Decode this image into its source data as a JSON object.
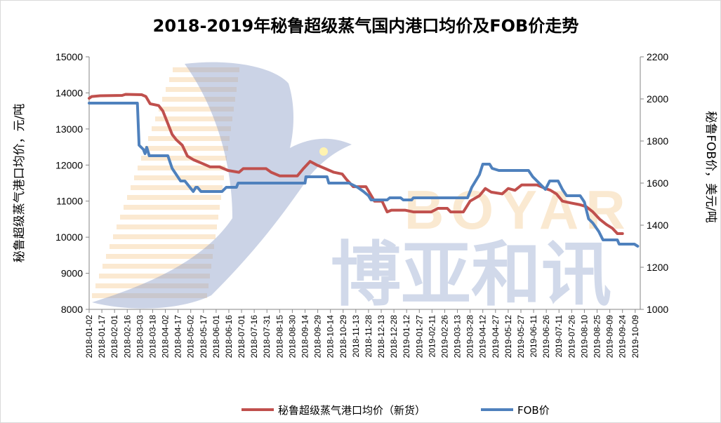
{
  "chart_data": {
    "type": "line",
    "title": "2018-2019年秘鲁超级蒸气国内港口均价及FOB价走势",
    "ylabel_left": "秘鲁超级蒸气港口均价，元/吨",
    "ylabel_right": "秘鲁FOB价，美元/吨",
    "ylim_left": [
      8000,
      15000
    ],
    "ylim_right": [
      1000,
      2200
    ],
    "yticks_left": [
      "8000",
      "9000",
      "10000",
      "11000",
      "12000",
      "13000",
      "14000",
      "15000"
    ],
    "yticks_right": [
      "1000",
      "1200",
      "1400",
      "1600",
      "1800",
      "2000",
      "2200"
    ],
    "x_start": "2018-01-02",
    "x_end": "2019-10-15",
    "x_ticks": [
      "2018-01-02",
      "2018-01-17",
      "2018-02-01",
      "2018-02-16",
      "2018-03-03",
      "2018-03-18",
      "2018-04-02",
      "2018-04-17",
      "2018-05-02",
      "2018-05-17",
      "2018-06-01",
      "2018-06-16",
      "2018-07-01",
      "2018-07-16",
      "2018-07-31",
      "2018-08-15",
      "2018-08-30",
      "2018-09-14",
      "2018-09-29",
      "2018-10-14",
      "2018-10-29",
      "2018-11-13",
      "2018-11-28",
      "2018-12-13",
      "2018-12-28",
      "2019-01-12",
      "2019-01-27",
      "2019-02-11",
      "2019-02-26",
      "2019-03-13",
      "2019-03-28",
      "2019-04-12",
      "2019-04-27",
      "2019-05-12",
      "2019-05-27",
      "2019-06-11",
      "2019-06-26",
      "2019-07-11",
      "2019-07-26",
      "2019-08-10",
      "2019-08-25",
      "2019-09-09",
      "2019-09-24",
      "2019-10-09"
    ],
    "grid": false,
    "legend_position": "bottom",
    "watermark": {
      "latin": "BOYAR",
      "cjk": "博亚和讯"
    },
    "series": [
      {
        "name": "秘鲁超级蒸气港口均价（新货）",
        "axis": "left",
        "color": "#c0504d",
        "points": [
          [
            "2018-01-02",
            13850
          ],
          [
            "2018-01-05",
            13900
          ],
          [
            "2018-01-15",
            13920
          ],
          [
            "2018-02-10",
            13930
          ],
          [
            "2018-02-14",
            13960
          ],
          [
            "2018-03-05",
            13950
          ],
          [
            "2018-03-10",
            13900
          ],
          [
            "2018-03-15",
            13700
          ],
          [
            "2018-03-25",
            13650
          ],
          [
            "2018-03-30",
            13500
          ],
          [
            "2018-04-05",
            13150
          ],
          [
            "2018-04-10",
            12850
          ],
          [
            "2018-04-15",
            12700
          ],
          [
            "2018-04-22",
            12550
          ],
          [
            "2018-04-28",
            12250
          ],
          [
            "2018-05-05",
            12150
          ],
          [
            "2018-05-15",
            12050
          ],
          [
            "2018-05-25",
            11950
          ],
          [
            "2018-06-05",
            11950
          ],
          [
            "2018-06-15",
            11850
          ],
          [
            "2018-06-28",
            11800
          ],
          [
            "2018-07-03",
            11900
          ],
          [
            "2018-07-10",
            11900
          ],
          [
            "2018-07-30",
            11900
          ],
          [
            "2018-08-05",
            11800
          ],
          [
            "2018-08-15",
            11700
          ],
          [
            "2018-09-05",
            11700
          ],
          [
            "2018-09-12",
            11900
          ],
          [
            "2018-09-20",
            12100
          ],
          [
            "2018-09-28",
            12000
          ],
          [
            "2018-10-08",
            11900
          ],
          [
            "2018-10-18",
            11800
          ],
          [
            "2018-10-28",
            11750
          ],
          [
            "2018-11-02",
            11600
          ],
          [
            "2018-11-10",
            11400
          ],
          [
            "2018-11-25",
            11400
          ],
          [
            "2018-11-30",
            11200
          ],
          [
            "2018-12-05",
            11000
          ],
          [
            "2018-12-14",
            11000
          ],
          [
            "2018-12-20",
            10700
          ],
          [
            "2018-12-25",
            10750
          ],
          [
            "2019-01-10",
            10750
          ],
          [
            "2019-01-20",
            10700
          ],
          [
            "2019-02-10",
            10700
          ],
          [
            "2019-02-18",
            10800
          ],
          [
            "2019-03-01",
            10800
          ],
          [
            "2019-03-05",
            10700
          ],
          [
            "2019-03-20",
            10700
          ],
          [
            "2019-03-28",
            11000
          ],
          [
            "2019-04-08",
            11150
          ],
          [
            "2019-04-15",
            11350
          ],
          [
            "2019-04-22",
            11250
          ],
          [
            "2019-05-05",
            11200
          ],
          [
            "2019-05-12",
            11350
          ],
          [
            "2019-05-20",
            11300
          ],
          [
            "2019-05-28",
            11450
          ],
          [
            "2019-06-10",
            11450
          ],
          [
            "2019-06-15",
            11450
          ],
          [
            "2019-06-25",
            11350
          ],
          [
            "2019-07-01",
            11300
          ],
          [
            "2019-07-08",
            11200
          ],
          [
            "2019-07-15",
            11000
          ],
          [
            "2019-07-25",
            10950
          ],
          [
            "2019-08-05",
            10900
          ],
          [
            "2019-08-12",
            10850
          ],
          [
            "2019-08-20",
            10700
          ],
          [
            "2019-08-28",
            10500
          ],
          [
            "2019-09-05",
            10350
          ],
          [
            "2019-09-12",
            10250
          ],
          [
            "2019-09-18",
            10100
          ],
          [
            "2019-09-24",
            10100
          ]
        ]
      },
      {
        "name": "FOB价",
        "axis": "right",
        "color": "#4f81bd",
        "points": [
          [
            "2018-01-02",
            1980
          ],
          [
            "2018-02-28",
            1980
          ],
          [
            "2018-03-02",
            1780
          ],
          [
            "2018-03-07",
            1760
          ],
          [
            "2018-03-09",
            1740
          ],
          [
            "2018-03-11",
            1770
          ],
          [
            "2018-03-14",
            1730
          ],
          [
            "2018-04-05",
            1730
          ],
          [
            "2018-04-10",
            1670
          ],
          [
            "2018-04-15",
            1640
          ],
          [
            "2018-04-20",
            1610
          ],
          [
            "2018-04-25",
            1610
          ],
          [
            "2018-05-01",
            1580
          ],
          [
            "2018-05-05",
            1560
          ],
          [
            "2018-05-08",
            1580
          ],
          [
            "2018-05-10",
            1580
          ],
          [
            "2018-05-14",
            1560
          ],
          [
            "2018-06-08",
            1560
          ],
          [
            "2018-06-13",
            1580
          ],
          [
            "2018-06-25",
            1580
          ],
          [
            "2018-06-27",
            1600
          ],
          [
            "2018-09-14",
            1600
          ],
          [
            "2018-09-15",
            1630
          ],
          [
            "2018-10-10",
            1630
          ],
          [
            "2018-10-12",
            1600
          ],
          [
            "2018-11-05",
            1600
          ],
          [
            "2018-11-15",
            1580
          ],
          [
            "2018-11-22",
            1560
          ],
          [
            "2018-11-28",
            1540
          ],
          [
            "2018-12-01",
            1520
          ],
          [
            "2018-12-20",
            1520
          ],
          [
            "2018-12-23",
            1530
          ],
          [
            "2019-01-05",
            1530
          ],
          [
            "2019-01-08",
            1520
          ],
          [
            "2019-01-18",
            1520
          ],
          [
            "2019-01-20",
            1530
          ],
          [
            "2019-03-25",
            1530
          ],
          [
            "2019-03-30",
            1580
          ],
          [
            "2019-04-08",
            1640
          ],
          [
            "2019-04-12",
            1690
          ],
          [
            "2019-04-20",
            1690
          ],
          [
            "2019-04-23",
            1670
          ],
          [
            "2019-05-01",
            1660
          ],
          [
            "2019-05-05",
            1660
          ],
          [
            "2019-05-10",
            1660
          ],
          [
            "2019-06-05",
            1660
          ],
          [
            "2019-06-10",
            1630
          ],
          [
            "2019-06-20",
            1590
          ],
          [
            "2019-06-25",
            1570
          ],
          [
            "2019-06-30",
            1610
          ],
          [
            "2019-07-10",
            1610
          ],
          [
            "2019-07-15",
            1570
          ],
          [
            "2019-07-20",
            1540
          ],
          [
            "2019-08-05",
            1540
          ],
          [
            "2019-08-10",
            1510
          ],
          [
            "2019-08-15",
            1430
          ],
          [
            "2019-08-20",
            1410
          ],
          [
            "2019-08-27",
            1370
          ],
          [
            "2019-09-01",
            1330
          ],
          [
            "2019-09-18",
            1330
          ],
          [
            "2019-09-20",
            1310
          ],
          [
            "2019-10-08",
            1310
          ],
          [
            "2019-10-12",
            1300
          ]
        ]
      }
    ]
  }
}
